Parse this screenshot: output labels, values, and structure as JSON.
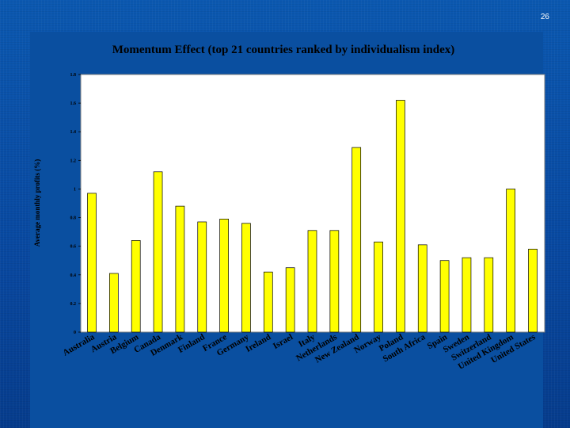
{
  "slide": {
    "page_number": "26"
  },
  "colors": {
    "background": "#0a4fa0",
    "plot_area": "#ffffff",
    "bar_fill": "#ffff00",
    "bar_stroke": "#000000"
  },
  "chart_data": {
    "type": "bar",
    "title": "Momentum Effect (top 21 countries ranked by individualism index)",
    "xlabel": "",
    "ylabel": "Average monthly profits (%)",
    "ylim": [
      0,
      1.8
    ],
    "yticks": [
      0,
      0.2,
      0.4,
      0.6,
      0.8,
      1,
      1.2,
      1.4,
      1.6,
      1.8
    ],
    "ytick_labels": [
      "0",
      "0.2",
      "0.4",
      "0.6",
      "0.8",
      "1",
      "1.2",
      "1.4",
      "1.6",
      "1.8"
    ],
    "grid": false,
    "categories": [
      "Australia",
      "Austria",
      "Belgium",
      "Canada",
      "Denmark",
      "Finland",
      "France",
      "Germany",
      "Ireland",
      "Israel",
      "Italy",
      "Netherlands",
      "New Zealand",
      "Norway",
      "Poland",
      "South Africa",
      "Spain",
      "Sweden",
      "Switzerland",
      "United Kingdom",
      "United States"
    ],
    "values": [
      0.97,
      0.41,
      0.64,
      1.12,
      0.88,
      0.77,
      0.79,
      0.76,
      0.42,
      0.45,
      0.71,
      0.71,
      1.29,
      0.63,
      1.62,
      0.61,
      0.5,
      0.52,
      0.52,
      1.0,
      0.58
    ]
  }
}
